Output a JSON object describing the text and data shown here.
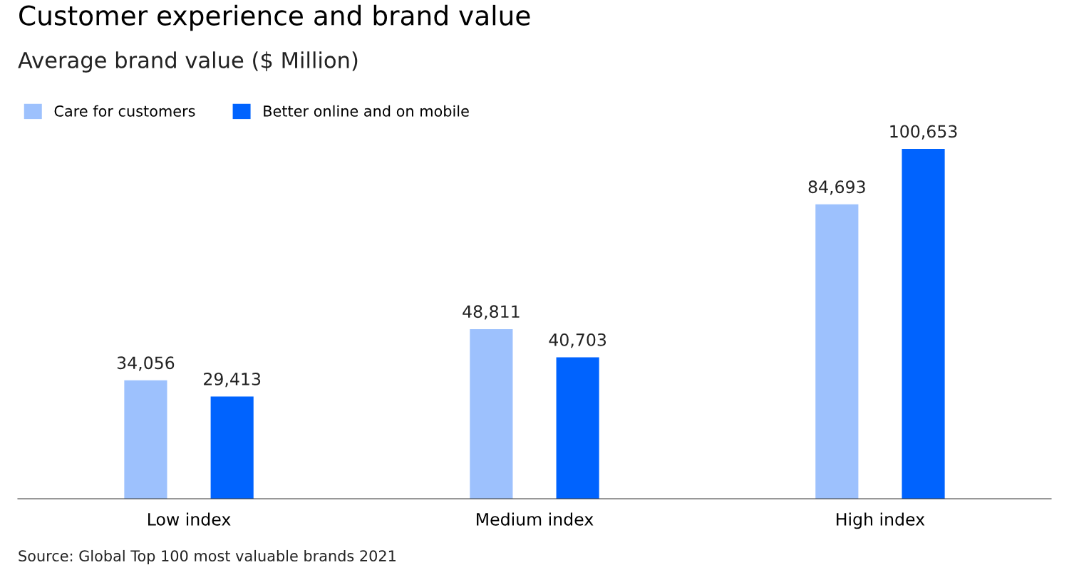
{
  "chart_data": {
    "type": "bar",
    "title": "Customer experience and brand value",
    "subtitle": "Average brand value ($ Million)",
    "categories": [
      "Low index",
      "Medium index",
      "High index"
    ],
    "series": [
      {
        "name": "Care for customers",
        "color": "#9dc1fd",
        "values": [
          34056,
          48811,
          84693
        ],
        "value_labels": [
          "34,056",
          "48,811",
          "84,693"
        ]
      },
      {
        "name": "Better online and on mobile",
        "color": "#0063fe",
        "values": [
          29413,
          40703,
          100653
        ],
        "value_labels": [
          "29,413",
          "40,703",
          "100,653"
        ]
      }
    ],
    "legend": "top left",
    "grid": false,
    "annotations": [
      "Source: Global Top 100 most valuable brands 2021"
    ]
  }
}
